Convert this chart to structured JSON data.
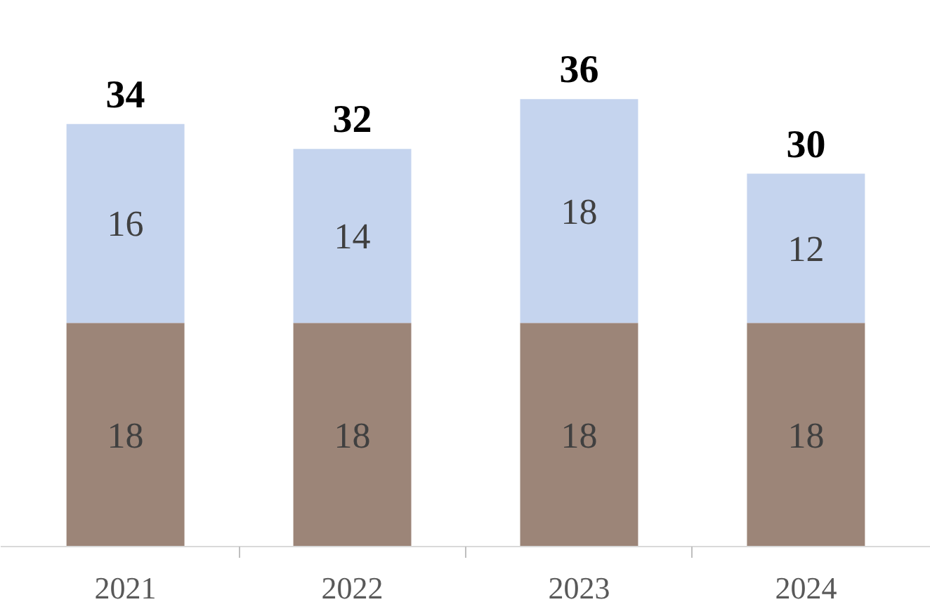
{
  "chart_data": {
    "type": "bar",
    "stacked": true,
    "categories": [
      "2021",
      "2022",
      "2023",
      "2024"
    ],
    "series": [
      {
        "color": "#9c8578",
        "values": [
          18,
          18,
          18,
          18
        ]
      },
      {
        "color": "#c5d4ee",
        "values": [
          16,
          14,
          18,
          12
        ]
      }
    ],
    "data_labels": true,
    "totals": [
      "34",
      "32",
      "36",
      "30"
    ],
    "grid": false
  }
}
